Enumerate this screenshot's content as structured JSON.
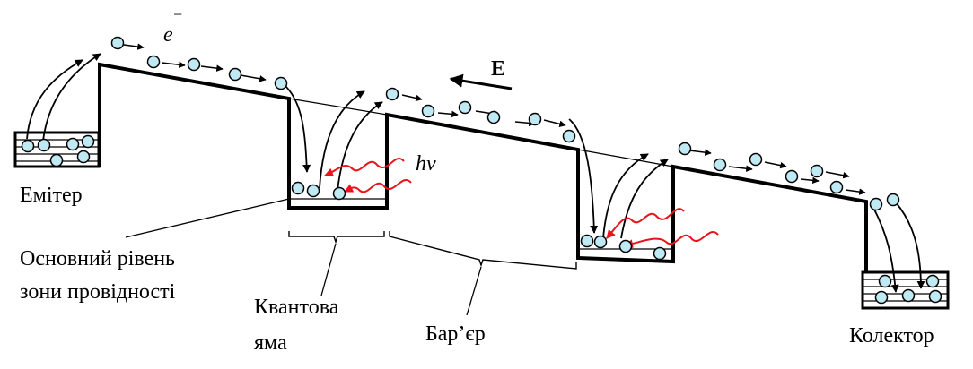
{
  "labels": {
    "electron": "e",
    "electron_sign": "−",
    "field": "E",
    "photon": "hν",
    "emitter": "Емітер",
    "conduction_level_line1": "Основний рівень",
    "conduction_level_line2": "зони провідності",
    "quantum_well_line1": "Квантова",
    "quantum_well_line2": "яма",
    "barrier": "Бар’єр",
    "collector": "Колектор"
  },
  "colors": {
    "line": "#000000",
    "electron_fill": "#bfe9f3",
    "photon": "#e8141b"
  }
}
